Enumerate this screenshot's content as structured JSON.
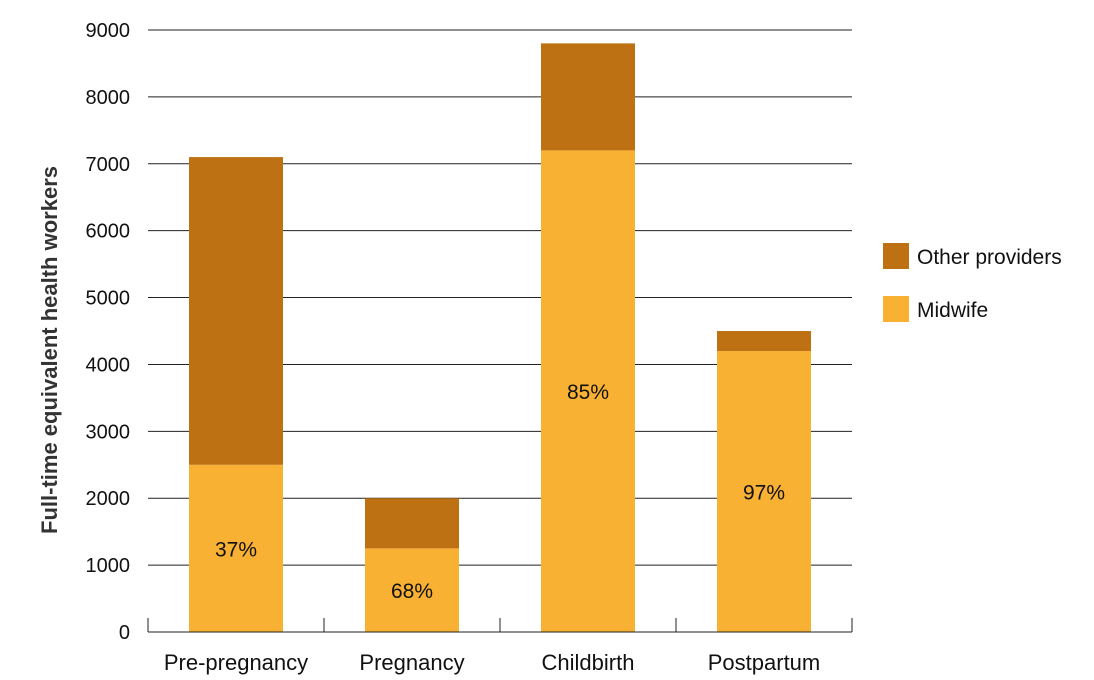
{
  "chart_data": {
    "type": "bar",
    "stacked": true,
    "title": "",
    "xlabel": "",
    "ylabel": "Full-time equivalent health workers",
    "categories": [
      "Pre-pregnancy",
      "Pregnancy",
      "Childbirth",
      "Postpartum"
    ],
    "series": [
      {
        "name": "Midwife",
        "color": "#F8B133",
        "values": [
          2500,
          1250,
          7200,
          4200
        ],
        "data_labels": [
          "37%",
          "68%",
          "85%",
          "97%"
        ]
      },
      {
        "name": "Other providers",
        "color": "#BD7112",
        "values": [
          4600,
          750,
          1600,
          300
        ]
      }
    ],
    "ylim": [
      0,
      9000
    ],
    "yticks": [
      0,
      1000,
      2000,
      3000,
      4000,
      5000,
      6000,
      7000,
      8000,
      9000
    ],
    "grid": true,
    "legend": {
      "position": "right",
      "order": [
        "Other providers",
        "Midwife"
      ]
    }
  }
}
